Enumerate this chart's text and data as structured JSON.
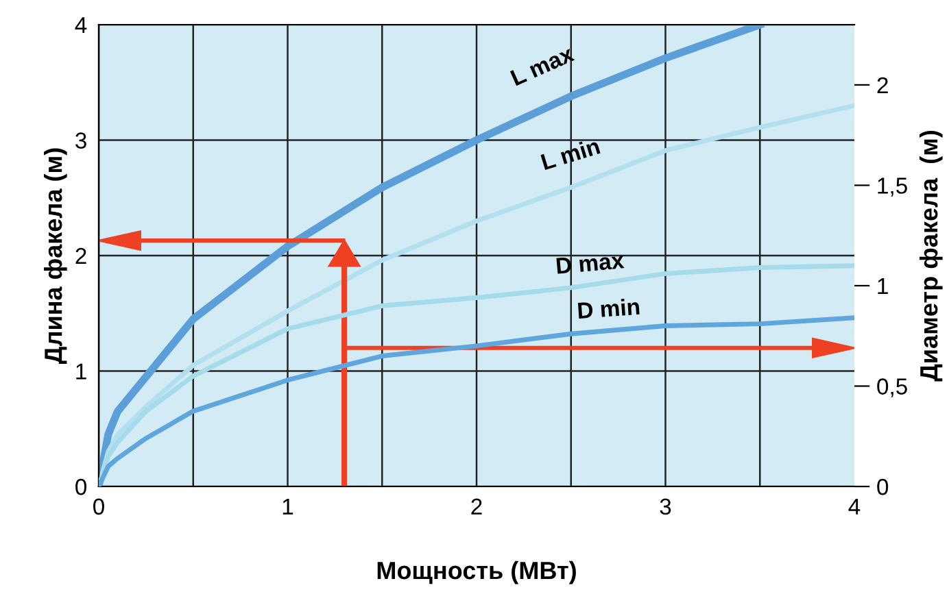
{
  "chart_data": {
    "type": "line",
    "xlabel": "Мощность (МВт)",
    "ylabel": "Длина факела (м)",
    "y2label": "Диаметр факела  (м)",
    "x": [
      0,
      0.05,
      0.1,
      0.25,
      0.5,
      1,
      1.5,
      2,
      2.5,
      3,
      3.5,
      4
    ],
    "series": [
      {
        "name": "L max",
        "color": "#5b9ed8",
        "values": [
          0,
          0.45,
          0.65,
          0.95,
          1.45,
          2.08,
          2.59,
          3.0,
          3.38,
          3.71,
          4.0,
          null
        ]
      },
      {
        "name": "L min",
        "color": "#b3e0f0",
        "values": [
          0,
          0.3,
          0.45,
          0.69,
          1.05,
          1.52,
          1.96,
          2.3,
          2.59,
          2.91,
          3.11,
          3.3
        ]
      },
      {
        "name": "D max",
        "color": "#a6dbec",
        "axis": "y2",
        "values": [
          0,
          0.15,
          0.22,
          0.375,
          0.55,
          0.785,
          0.9,
          0.94,
          0.99,
          1.06,
          1.09,
          1.1
        ]
      },
      {
        "name": "D min",
        "color": "#5fa6dd",
        "axis": "y2",
        "values": [
          0,
          0.1,
          0.14,
          0.24,
          0.375,
          0.53,
          0.65,
          0.7,
          0.76,
          0.8,
          0.81,
          0.84
        ]
      }
    ],
    "xlim": [
      0,
      4
    ],
    "xticks": [
      0,
      1,
      2,
      3,
      4
    ],
    "ylim": [
      0,
      4
    ],
    "yticks": [
      0,
      1,
      2,
      3,
      4
    ],
    "y2lim": [
      0,
      2.3
    ],
    "y2ticks": [
      0,
      {
        "value": 0.5,
        "label": "0,5"
      },
      1,
      {
        "value": 1.5,
        "label": "1,5"
      },
      2
    ],
    "grid": true,
    "legend": false,
    "marker": "none",
    "line_style": "solid"
  }
}
